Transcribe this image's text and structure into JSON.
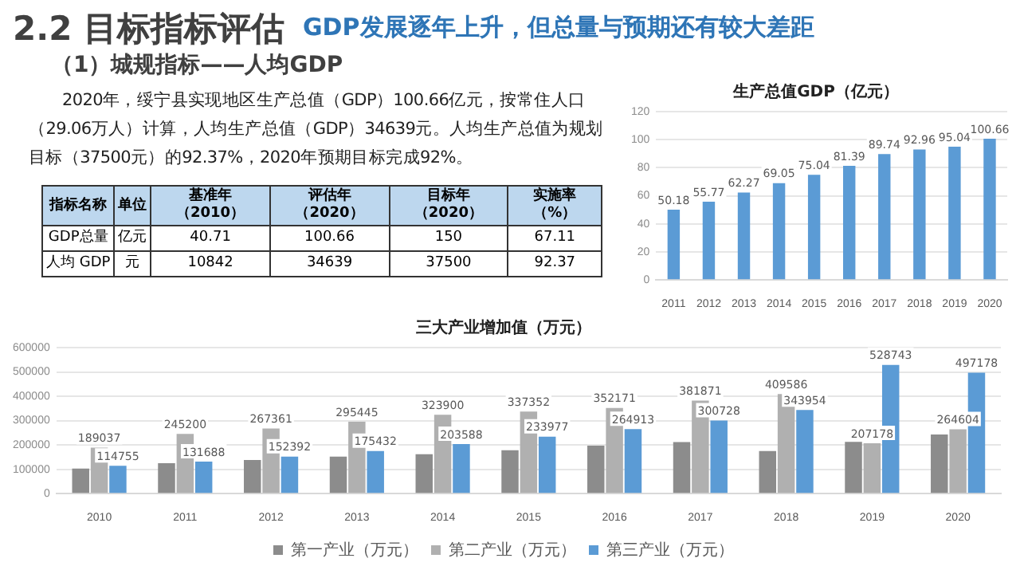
{
  "chart_data": [
    {
      "type": "other",
      "title": "2.2 目标指标评估",
      "subtitle": "GDP发展逐年上升，但总量与预期还有较大差距",
      "annotations": [
        "（1）城规指标——人均GDP",
        "2020年，绥宁县实现地区生产总值（GDP）100.66亿元，按常住人口（29.06万人）计算，人均生产总值（GDP）34639元。人均生产总值为规划目标（37500元）的92.37%，2020年预期目标完成92%。",
        "指标名称",
        "单位",
        "基准年（2010）",
        "评估年（2020）",
        "目标年（2020）",
        "实施率（%）",
        "GDP总量",
        "亿元",
        "40.71",
        "100.66",
        "150",
        "67.11",
        "人均 GDP",
        "元",
        "10842",
        "34639",
        "37500",
        "92.37"
      ]
    },
    {
      "type": "bar",
      "title": "生产总值GDP（亿元）",
      "categories": [
        "2011",
        "2012",
        "2013",
        "2014",
        "2015",
        "2016",
        "2017",
        "2018",
        "2019",
        "2020"
      ],
      "values": [
        50.18,
        55.77,
        62.27,
        69.05,
        75.04,
        81.39,
        89.74,
        92.96,
        95.04,
        100.66
      ],
      "color": "#5b9bd5",
      "ylim": [
        0,
        120
      ],
      "yticks": [
        0,
        20,
        40,
        60,
        80,
        100,
        120
      ],
      "grid": "y",
      "data_labels": true
    },
    {
      "type": "bar",
      "title": "三大产业增加值（万元）",
      "categories": [
        "2010",
        "2011",
        "2012",
        "2013",
        "2014",
        "2015",
        "2016",
        "2017",
        "2018",
        "2019",
        "2020"
      ],
      "series": [
        {
          "name": "第一产业（万元）",
          "color": "#8c8c8c",
          "values": [
            103000,
            125000,
            138000,
            152000,
            162000,
            178000,
            197000,
            212000,
            175000,
            213000,
            243000
          ]
        },
        {
          "name": "第二产业（万元）",
          "color": "#b0b0b0",
          "values": [
            189037,
            245200,
            267361,
            295445,
            323900,
            337352,
            352171,
            381871,
            409586,
            207178,
            264604
          ],
          "value_labels": [
            "189037",
            "245200",
            "267361",
            "295445",
            "323900",
            "337352",
            "352171",
            "381871",
            "409586",
            "207178",
            "264604"
          ]
        },
        {
          "name": "第三产业（万元）",
          "color": "#5b9bd5",
          "values": [
            114755,
            131688,
            152392,
            175432,
            203588,
            233977,
            264913,
            300728,
            343954,
            528743,
            497178
          ],
          "value_labels": [
            "114755",
            "131688",
            "152392",
            "175432",
            "203588",
            "233977",
            "264913",
            "300728",
            "343954",
            "528743",
            "497178"
          ]
        }
      ],
      "ylim": [
        0,
        600000
      ],
      "yticks": [
        0,
        100000,
        200000,
        300000,
        400000,
        500000,
        600000
      ],
      "grid": "y",
      "legend": "bottom"
    }
  ]
}
